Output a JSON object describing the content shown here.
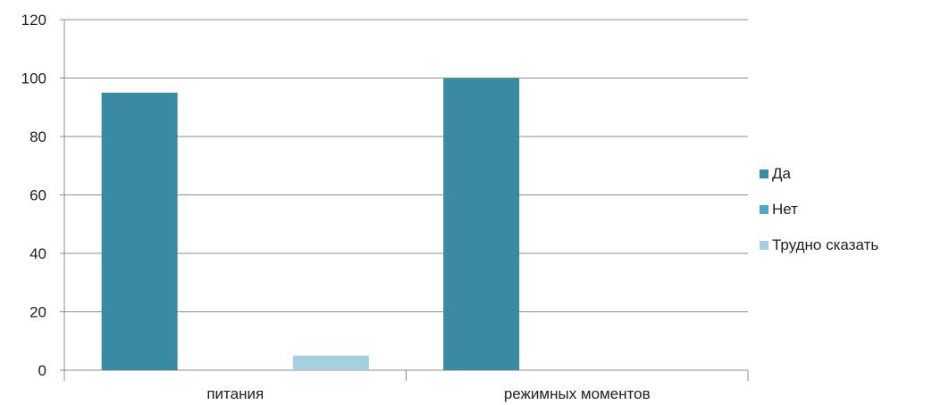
{
  "chart_data": {
    "type": "bar",
    "categories": [
      "питания",
      "режимных моментов"
    ],
    "series": [
      {
        "name": "Да",
        "values": [
          95,
          100
        ],
        "color": "#3b8aa3"
      },
      {
        "name": "Нет",
        "values": [
          0,
          0
        ],
        "color": "#4ba9c8"
      },
      {
        "name": "Трудно сказать",
        "values": [
          5,
          0
        ],
        "color": "#a5cfdf"
      }
    ],
    "ylim": [
      0,
      120
    ],
    "yticks": [
      "0",
      "20",
      "40",
      "60",
      "80",
      "100",
      "120"
    ],
    "grid": true,
    "legend_position": "right",
    "title": "",
    "xlabel": "",
    "ylabel": ""
  }
}
